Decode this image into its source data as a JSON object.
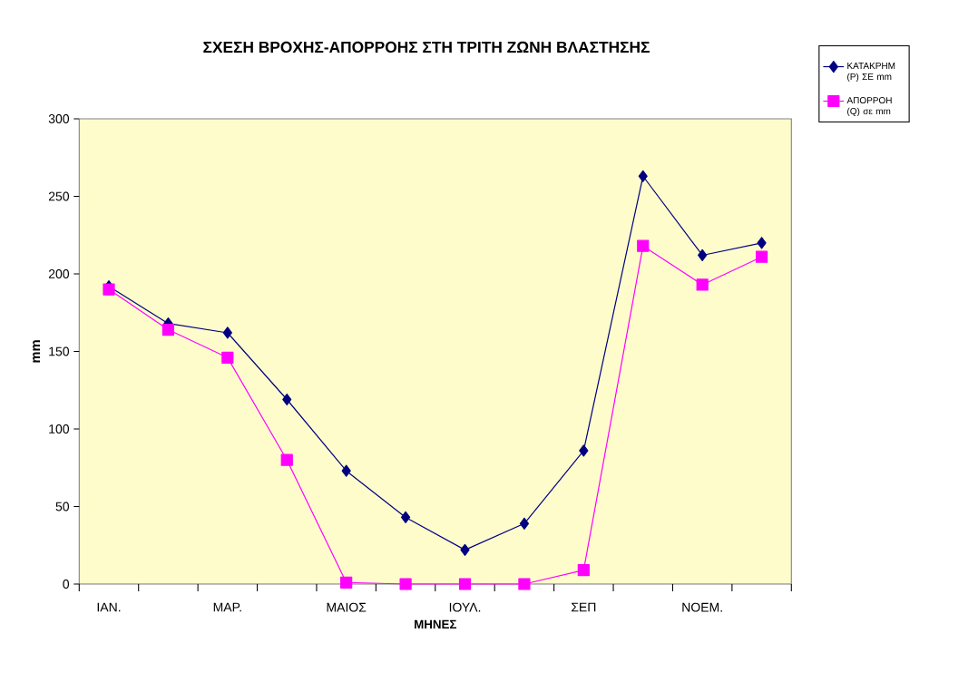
{
  "chart_data": {
    "type": "line",
    "title": "ΣΧΕΣΗ ΒΡΟΧΗΣ-ΑΠΟΡΡΟΗΣ ΣΤΗ ΤΡΙΤΗ ΖΩΝΗ ΒΛΑΣΤΗΣΗΣ",
    "xlabel": "ΜΗΝΕΣ",
    "ylabel": "mm",
    "categories": [
      "ΙΑΝ.",
      null,
      "ΜΑΡ.",
      null,
      "ΜΑΙΟΣ",
      null,
      "ΙΟΥΛ.",
      null,
      "ΣΕΠ",
      null,
      "ΝΟΕΜ.",
      null
    ],
    "series": [
      {
        "name": "ΚΑΤΑΚΡΗΜ (P) ΣΕ mm",
        "color": "#000080",
        "marker": "diamond",
        "values": [
          192,
          168,
          162,
          119,
          73,
          43,
          22,
          39,
          86,
          263,
          212,
          220
        ]
      },
      {
        "name": "ΑΠΟΡΡΟΗ (Q) σε mm",
        "color": "#ff00ff",
        "marker": "square",
        "values": [
          190,
          164,
          146,
          80,
          1,
          0,
          0,
          0,
          9,
          218,
          193,
          211
        ]
      }
    ],
    "ylim": [
      0,
      300
    ],
    "yticks": [
      0,
      50,
      100,
      150,
      200,
      250,
      300
    ],
    "legend": "right",
    "grid": false
  }
}
